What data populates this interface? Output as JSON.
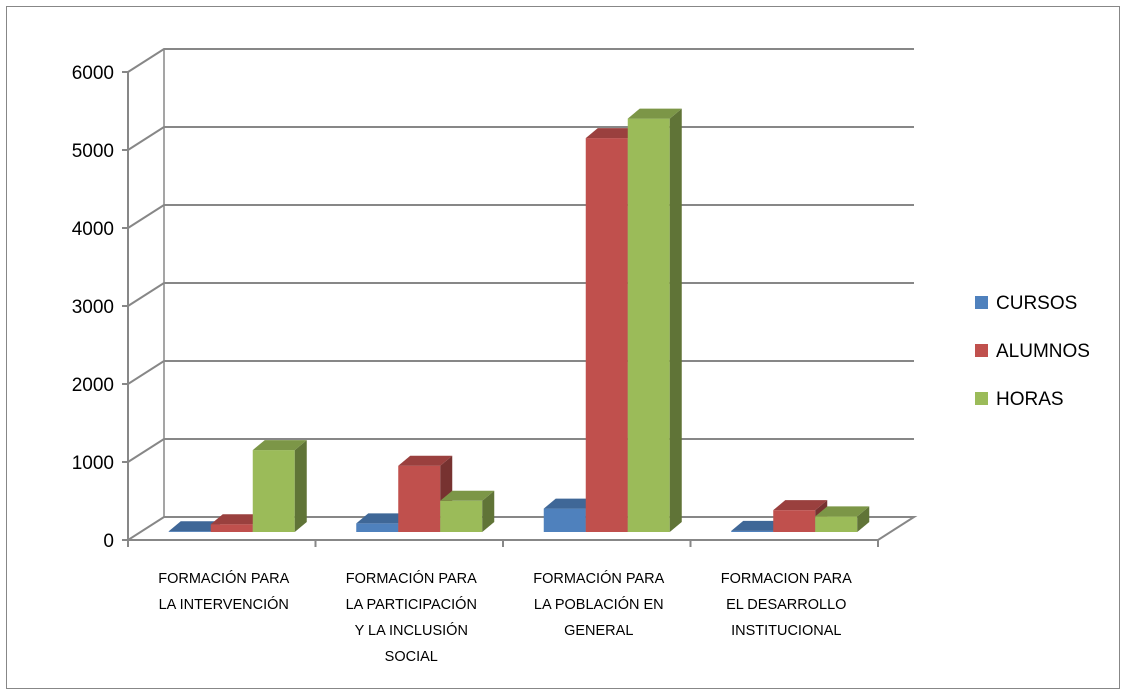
{
  "chart_data": {
    "type": "bar",
    "style": "3d-clustered-column",
    "categories": [
      [
        "FORMACIÓN PARA",
        "LA INTERVENCIÓN"
      ],
      [
        "FORMACIÓN PARA",
        "LA PARTICIPACIÓN",
        "Y LA INCLUSIÓN",
        "SOCIAL"
      ],
      [
        "FORMACIÓN PARA",
        "LA POBLACIÓN EN",
        "GENERAL"
      ],
      [
        "FORMACION PARA",
        "EL DESARROLLO",
        "INSTITUCIONAL"
      ]
    ],
    "series": [
      {
        "name": "CURSOS",
        "color": "#4F81BD",
        "values": [
          10,
          110,
          300,
          15
        ]
      },
      {
        "name": "ALUMNOS",
        "color": "#C0504D",
        "values": [
          100,
          850,
          5050,
          280
        ]
      },
      {
        "name": "HORAS",
        "color": "#9BBB59",
        "values": [
          1050,
          400,
          5300,
          200
        ]
      }
    ],
    "ylim": [
      0,
      6000
    ],
    "yticks": [
      "0",
      "1000",
      "2000",
      "3000",
      "4000",
      "5000",
      "6000"
    ],
    "grid": true,
    "legend": "right",
    "title": "",
    "xlabel": "",
    "ylabel": ""
  }
}
